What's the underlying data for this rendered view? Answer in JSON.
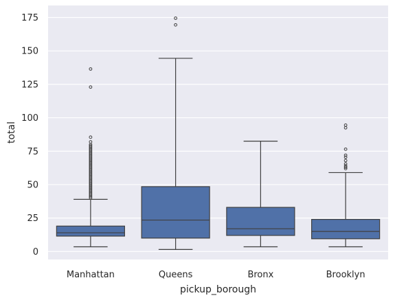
{
  "chart_data": {
    "type": "box",
    "xlabel": "pickup_borough",
    "ylabel": "total",
    "ylim": [
      -6,
      184
    ],
    "yticks": [
      0,
      25,
      50,
      75,
      100,
      125,
      150,
      175
    ],
    "grid": true,
    "legend": "none",
    "categories": [
      "Manhattan",
      "Queens",
      "Bronx",
      "Brooklyn"
    ],
    "boxes": [
      {
        "category": "Manhattan",
        "whisker_low": 3.5,
        "q1": 11.5,
        "median": 14,
        "q3": 19,
        "whisker_high": 39,
        "outliers": [
          40,
          41,
          42,
          43,
          44,
          45,
          46,
          47,
          48,
          49,
          50,
          51,
          52,
          53,
          54,
          55,
          56,
          57,
          58,
          59,
          60,
          61,
          62,
          63,
          64,
          65,
          66,
          67,
          68,
          69,
          70,
          71,
          72,
          73,
          74,
          75,
          76,
          77,
          78,
          79,
          80,
          82,
          85.5,
          123,
          136.5
        ]
      },
      {
        "category": "Queens",
        "whisker_low": 1.5,
        "q1": 10,
        "median": 23.5,
        "q3": 48.5,
        "whisker_high": 144.5,
        "outliers": [
          169.5,
          174.5
        ]
      },
      {
        "category": "Bronx",
        "whisker_low": 3.5,
        "q1": 12,
        "median": 17,
        "q3": 33,
        "whisker_high": 82.5,
        "outliers": []
      },
      {
        "category": "Brooklyn",
        "whisker_low": 3.5,
        "q1": 9.5,
        "median": 15,
        "q3": 24,
        "whisker_high": 59,
        "outliers": [
          62,
          63,
          64,
          65.5,
          68,
          70.5,
          72,
          76.5,
          92.5,
          94.5
        ]
      }
    ],
    "colors": {
      "box_fill": "#5071a8",
      "line": "#3f3f3f",
      "background": "#eaeaf2",
      "grid": "#ffffff",
      "text": "#262626"
    }
  }
}
